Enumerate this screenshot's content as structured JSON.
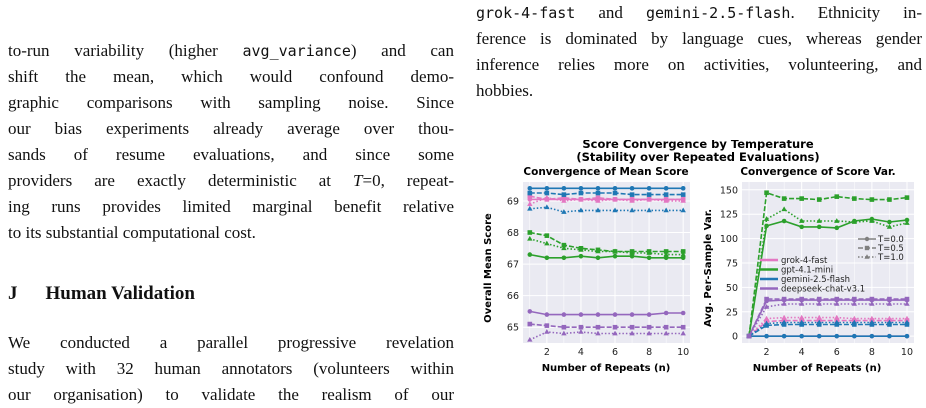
{
  "left_text": {
    "p1_l1a": "to-run variability (higher ",
    "p1_l1code": "avg_variance",
    "p1_l1b": ") and can",
    "p1_l2": "shift the mean, which would confound demo-",
    "p1_l3": "graphic comparisons with sampling noise. Since",
    "p1_l4": "our bias experiments already average over thou-",
    "p1_l5": "sands of resume evaluations, and since some",
    "p1_l6a": "providers are exactly deterministic at ",
    "p1_l6T": "T",
    "p1_l6b": "=0, repeat-",
    "p1_l7": "ing runs provides limited marginal benefit relative",
    "p1_l8": "to its substantial computational cost.",
    "section_num": "J",
    "section_title": "Human Validation",
    "p2_l1": "We conducted a parallel progressive revelation",
    "p2_l2": "study with 32 human annotators (volunteers within",
    "p2_l3": "our organisation) to validate the realism of our"
  },
  "right_text": {
    "l1code1": "grok-4-fast",
    "l1and": " and ",
    "l1code2": "gemini-2.5-flash",
    "l1b": ". Ethnicity in-",
    "l2": "ference is dominated by language cues, whereas gender",
    "l3": "inference relies more on activities, volunteering, and",
    "l4": "hobbies."
  },
  "figure": {
    "suptitle_1": "Score Convergence by Temperature",
    "suptitle_2": "(Stability over Repeated Evaluations)",
    "left_title": "Convergence of Mean Score",
    "right_title": "Convergence of Score Var.",
    "left_ylabel": "Overall Mean Score",
    "right_ylabel": "Avg. Per-Sample Var.",
    "xlabel": "Number of Repeats (n)",
    "colors": {
      "grok-4-fast": "#e377c2",
      "gpt-4.1-mini": "#2ca02c",
      "gemini-2.5-flash": "#1f77b4",
      "deepseek-chat-v3.1": "#9467bd"
    },
    "legend_temps": [
      "T=0.0",
      "T=0.5",
      "T=1.0"
    ],
    "legend_models": [
      "grok-4-fast",
      "gpt-4.1-mini",
      "gemini-2.5-flash",
      "deepseek-chat-v3.1"
    ]
  },
  "chart_data": [
    {
      "type": "line",
      "title": "Convergence of Mean Score",
      "xlabel": "Number of Repeats (n)",
      "ylabel": "Overall Mean Score",
      "xlim": [
        0.6,
        10.4
      ],
      "ylim": [
        64.5,
        69.6
      ],
      "xticks": [
        2,
        4,
        6,
        8,
        10
      ],
      "yticks": [
        65,
        66,
        67,
        68,
        69
      ],
      "grid": true,
      "x": [
        1,
        2,
        3,
        4,
        5,
        6,
        7,
        8,
        9,
        10
      ],
      "series": [
        {
          "model": "grok-4-fast",
          "temp": "T=0.0",
          "values": [
            69.05,
            69.05,
            69.05,
            69.05,
            69.05,
            69.05,
            69.05,
            69.05,
            69.05,
            69.05
          ]
        },
        {
          "model": "grok-4-fast",
          "temp": "T=0.5",
          "values": [
            69.15,
            69.05,
            69.1,
            69.05,
            69.1,
            69.05,
            69.05,
            69.05,
            69.05,
            69.05
          ]
        },
        {
          "model": "grok-4-fast",
          "temp": "T=1.0",
          "values": [
            68.9,
            69.1,
            69.0,
            69.05,
            69.0,
            69.05,
            69.0,
            69.05,
            69.0,
            69.0
          ]
        },
        {
          "model": "gpt-4.1-mini",
          "temp": "T=0.5",
          "values": [
            68.0,
            67.9,
            67.6,
            67.5,
            67.45,
            67.4,
            67.4,
            67.4,
            67.4,
            67.4
          ]
        },
        {
          "model": "gpt-4.1-mini",
          "temp": "T=1.0",
          "values": [
            67.8,
            67.65,
            67.5,
            67.45,
            67.4,
            67.4,
            67.35,
            67.35,
            67.3,
            67.3
          ]
        },
        {
          "model": "gpt-4.1-mini",
          "temp": "T=0.0",
          "values": [
            67.3,
            67.2,
            67.2,
            67.25,
            67.2,
            67.25,
            67.25,
            67.2,
            67.2,
            67.2
          ]
        },
        {
          "model": "gemini-2.5-flash",
          "temp": "T=0.0",
          "values": [
            69.4,
            69.4,
            69.4,
            69.4,
            69.4,
            69.4,
            69.4,
            69.4,
            69.4,
            69.4
          ]
        },
        {
          "model": "gemini-2.5-flash",
          "temp": "T=0.5",
          "values": [
            69.25,
            69.25,
            69.2,
            69.25,
            69.25,
            69.25,
            69.2,
            69.2,
            69.2,
            69.2
          ]
        },
        {
          "model": "gemini-2.5-flash",
          "temp": "T=1.0",
          "values": [
            68.75,
            68.8,
            68.65,
            68.7,
            68.7,
            68.7,
            68.7,
            68.7,
            68.7,
            68.7
          ]
        },
        {
          "model": "deepseek-chat-v3.1",
          "temp": "T=0.0",
          "values": [
            65.5,
            65.4,
            65.4,
            65.4,
            65.4,
            65.4,
            65.4,
            65.4,
            65.45,
            65.45
          ]
        },
        {
          "model": "deepseek-chat-v3.1",
          "temp": "T=0.5",
          "values": [
            65.1,
            65.05,
            65.0,
            65.0,
            65.0,
            65.0,
            65.0,
            65.0,
            65.0,
            65.0
          ]
        },
        {
          "model": "deepseek-chat-v3.1",
          "temp": "T=1.0",
          "values": [
            64.6,
            64.85,
            64.8,
            64.85,
            64.8,
            64.8,
            64.8,
            64.8,
            64.8,
            64.8
          ]
        }
      ]
    },
    {
      "type": "line",
      "title": "Convergence of Score Var.",
      "xlabel": "Number of Repeats (n)",
      "ylabel": "Avg. Per-Sample Var.",
      "xlim": [
        0.6,
        10.4
      ],
      "ylim": [
        -7,
        158
      ],
      "xticks": [
        2,
        4,
        6,
        8,
        10
      ],
      "yticks": [
        0,
        25,
        50,
        75,
        100,
        125,
        150
      ],
      "grid": true,
      "legend": "right",
      "x": [
        1,
        2,
        3,
        4,
        5,
        6,
        7,
        8,
        9,
        10
      ],
      "series": [
        {
          "model": "grok-4-fast",
          "temp": "T=0.0",
          "values": [
            0,
            0,
            0,
            0,
            0,
            0,
            0,
            0,
            0,
            0
          ]
        },
        {
          "model": "grok-4-fast",
          "temp": "T=0.5",
          "values": [
            0,
            15,
            16,
            16,
            16,
            16,
            16,
            16,
            16,
            16
          ]
        },
        {
          "model": "grok-4-fast",
          "temp": "T=1.0",
          "values": [
            0,
            18,
            19,
            19,
            19,
            19,
            18,
            18,
            18,
            18
          ]
        },
        {
          "model": "gpt-4.1-mini",
          "temp": "T=0.0",
          "values": [
            0,
            113,
            118,
            112,
            112,
            111,
            118,
            120,
            117,
            119
          ]
        },
        {
          "model": "gpt-4.1-mini",
          "temp": "T=0.5",
          "values": [
            0,
            147,
            141,
            141,
            140,
            143,
            141,
            140,
            140,
            142
          ]
        },
        {
          "model": "gpt-4.1-mini",
          "temp": "T=1.0",
          "values": [
            0,
            120,
            130,
            118,
            118,
            118,
            117,
            118,
            112,
            116
          ]
        },
        {
          "model": "gemini-2.5-flash",
          "temp": "T=0.0",
          "values": [
            0,
            0,
            0,
            0,
            0,
            0,
            0,
            0,
            0,
            0
          ]
        },
        {
          "model": "gemini-2.5-flash",
          "temp": "T=0.5",
          "values": [
            0,
            11,
            12,
            12,
            12,
            12,
            12,
            12,
            12,
            12
          ]
        },
        {
          "model": "gemini-2.5-flash",
          "temp": "T=1.0",
          "values": [
            0,
            13,
            14,
            14,
            14,
            14,
            14,
            14,
            14,
            14
          ]
        },
        {
          "model": "deepseek-chat-v3.1",
          "temp": "T=0.0",
          "values": [
            0,
            36,
            37,
            37,
            37,
            37,
            37,
            37,
            37,
            37
          ]
        },
        {
          "model": "deepseek-chat-v3.1",
          "temp": "T=0.5",
          "values": [
            0,
            38,
            38,
            38,
            38,
            38,
            38,
            38,
            38,
            38
          ]
        },
        {
          "model": "deepseek-chat-v3.1",
          "temp": "T=1.0",
          "values": [
            0,
            30,
            33,
            33,
            33,
            33,
            33,
            33,
            33,
            33
          ]
        }
      ]
    }
  ]
}
